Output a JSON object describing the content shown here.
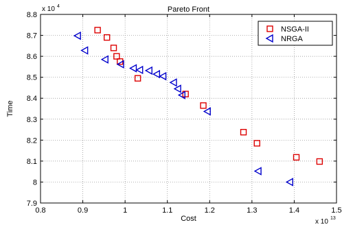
{
  "chart_data": {
    "type": "scatter",
    "title": "Pareto Front",
    "xlabel": "Cost",
    "ylabel": "Time",
    "x_multiplier": "x 10",
    "x_exponent": "13",
    "y_multiplier": "x 10",
    "y_exponent": "4",
    "xlim": [
      0.8,
      1.5
    ],
    "ylim": [
      7.9,
      8.8
    ],
    "xticks": [
      "0.8",
      "0.9",
      "1",
      "1.1",
      "1.2",
      "1.3",
      "1.4",
      "1.5"
    ],
    "yticks": [
      "7.9",
      "8",
      "8.1",
      "8.2",
      "8.3",
      "8.4",
      "8.5",
      "8.6",
      "8.7",
      "8.8"
    ],
    "grid": true,
    "legend_position": "top-right",
    "series": [
      {
        "name": "NSGA-II",
        "marker": "square",
        "color": "#dd0000",
        "x": [
          0.935,
          0.957,
          0.973,
          0.98,
          0.988,
          1.03,
          1.143,
          1.185,
          1.28,
          1.312,
          1.405,
          1.46
        ],
        "y": [
          8.725,
          8.69,
          8.64,
          8.6,
          8.575,
          8.495,
          8.42,
          8.365,
          8.238,
          8.185,
          8.118,
          8.098
        ]
      },
      {
        "name": "NRGA",
        "marker": "triangle-left",
        "color": "#0000cc",
        "x": [
          0.888,
          0.905,
          0.953,
          0.99,
          1.02,
          1.035,
          1.057,
          1.075,
          1.09,
          1.115,
          1.125,
          1.135,
          1.195,
          1.315,
          1.39
        ],
        "y": [
          8.698,
          8.628,
          8.585,
          8.562,
          8.543,
          8.535,
          8.532,
          8.515,
          8.505,
          8.475,
          8.445,
          8.415,
          8.337,
          8.052,
          8.0
        ]
      }
    ]
  }
}
